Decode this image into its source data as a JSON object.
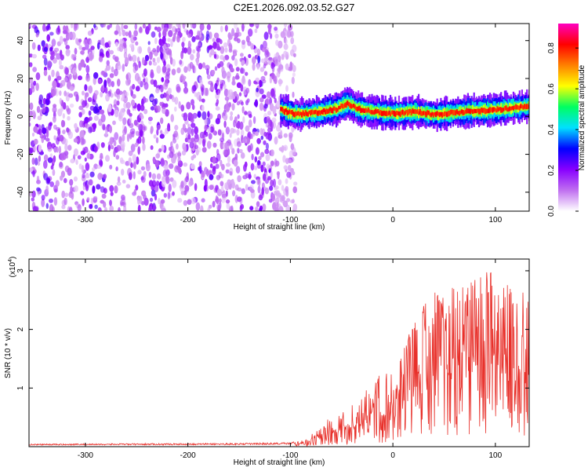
{
  "title": "C2E1.2026.092.03.52.G27",
  "chart_data": [
    {
      "type": "heatmap",
      "xlabel": "Height of straight line (km)",
      "ylabel": "Frequency (Hz)",
      "xlim": [
        -355,
        133
      ],
      "ylim": [
        -50,
        49
      ],
      "xticks": [
        -300,
        -200,
        -100,
        0,
        100
      ],
      "yticks": [
        -40,
        -20,
        0,
        20,
        40
      ],
      "xtick_labels": [
        "-300",
        "-200",
        "-100",
        "0",
        "100"
      ],
      "ytick_labels": [
        "-40",
        "-20",
        "0",
        "20",
        "40"
      ],
      "noise_region_x": [
        -355,
        -95
      ],
      "ridge_region_x": [
        -110,
        133
      ],
      "ridge_frequency_hz": [
        {
          "x": -110,
          "y": 3.5
        },
        {
          "x": -95,
          "y": 1.0
        },
        {
          "x": -75,
          "y": 2.0
        },
        {
          "x": -55,
          "y": 4.0
        },
        {
          "x": -45,
          "y": 7.0
        },
        {
          "x": -35,
          "y": 4.0
        },
        {
          "x": -20,
          "y": 2.5
        },
        {
          "x": 0,
          "y": 1.5
        },
        {
          "x": 20,
          "y": 2.5
        },
        {
          "x": 40,
          "y": 1.0
        },
        {
          "x": 60,
          "y": 2.0
        },
        {
          "x": 80,
          "y": 3.0
        },
        {
          "x": 100,
          "y": 3.5
        },
        {
          "x": 133,
          "y": 5.5
        }
      ],
      "colorbar": {
        "label": "Normalized spectral amplitude",
        "range": [
          0,
          0.92
        ],
        "ticks": [
          0.0,
          0.2,
          0.4,
          0.6,
          0.8
        ],
        "tick_labels": [
          "0.0",
          "0.2",
          "0.4",
          "0.6",
          "0.8"
        ],
        "colors": [
          "#ffffff",
          "#c070f0",
          "#8800ff",
          "#0000ff",
          "#00e0ff",
          "#00ff60",
          "#ffff00",
          "#ff8000",
          "#ff0000",
          "#ff00c0"
        ]
      }
    },
    {
      "type": "line",
      "xlabel": "Height of straight line (km)",
      "ylabel": "SNR (10 * v/v)",
      "scale_label": "(x10",
      "scale_exponent": "4",
      "scale_close": ")",
      "xlim": [
        -355,
        133
      ],
      "ylim": [
        0,
        3.2
      ],
      "xticks": [
        -300,
        -200,
        -100,
        0,
        100
      ],
      "yticks": [
        1,
        2,
        3
      ],
      "xtick_labels": [
        "-300",
        "-200",
        "-100",
        "0",
        "100"
      ],
      "ytick_labels": [
        "1",
        "2",
        "3"
      ],
      "line_color": "#e8302a",
      "envelope": [
        {
          "x": -355,
          "y": 0.04
        },
        {
          "x": -150,
          "y": 0.05
        },
        {
          "x": -100,
          "y": 0.06
        },
        {
          "x": -85,
          "y": 0.12
        },
        {
          "x": -70,
          "y": 0.4
        },
        {
          "x": -50,
          "y": 0.6
        },
        {
          "x": -35,
          "y": 0.8
        },
        {
          "x": -20,
          "y": 1.15
        },
        {
          "x": -5,
          "y": 1.35
        },
        {
          "x": 10,
          "y": 1.7
        },
        {
          "x": 25,
          "y": 2.4
        },
        {
          "x": 45,
          "y": 2.7
        },
        {
          "x": 70,
          "y": 2.85
        },
        {
          "x": 90,
          "y": 3.05
        },
        {
          "x": 110,
          "y": 2.8
        },
        {
          "x": 133,
          "y": 2.6
        }
      ]
    }
  ]
}
